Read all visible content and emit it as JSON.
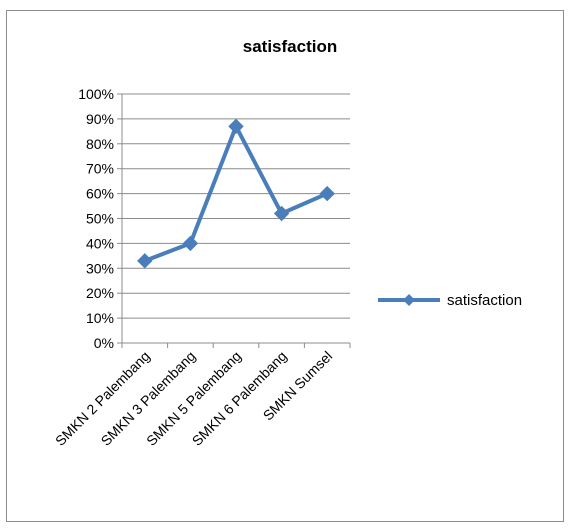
{
  "chart_data": {
    "type": "line",
    "title": "satisfaction",
    "categories": [
      "SMKN 2 Palembang",
      "SMKN 3 Palembang",
      "SMKN 5 Palembang",
      "SMKN 6 Palembang",
      "SMKN Sumsel"
    ],
    "series": [
      {
        "name": "satisfaction",
        "values": [
          0.33,
          0.4,
          0.87,
          0.52,
          0.6
        ],
        "color": "#4a7ebb"
      }
    ],
    "ylim": [
      0,
      1
    ],
    "yticks": [
      0,
      0.1,
      0.2,
      0.3,
      0.4,
      0.5,
      0.6,
      0.7,
      0.8,
      0.9,
      1.0
    ],
    "ytick_labels": [
      "0%",
      "10%",
      "20%",
      "30%",
      "40%",
      "50%",
      "60%",
      "70%",
      "80%",
      "90%",
      "100%"
    ],
    "xlabel": "",
    "ylabel": "",
    "grid": true,
    "legend_position": "right",
    "marker": "diamond"
  }
}
